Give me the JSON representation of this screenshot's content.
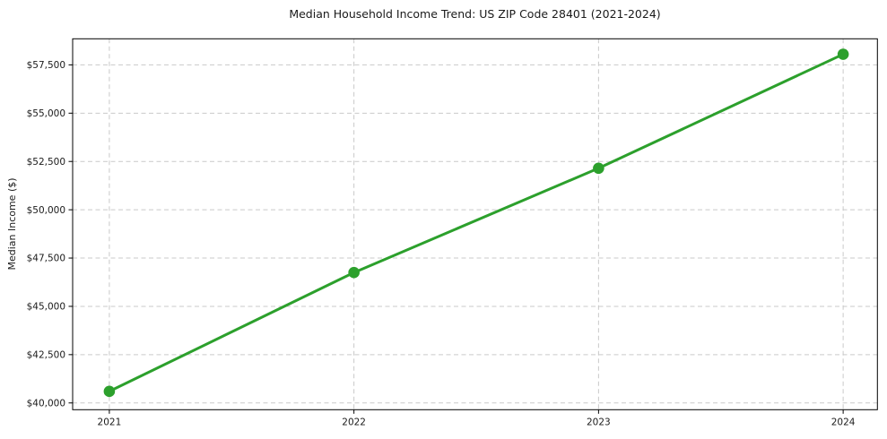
{
  "chart_data": {
    "type": "line",
    "title": "Median Household Income Trend: US ZIP Code 28401 (2021-2024)",
    "ylabel": "Median Income ($)",
    "xlabel": "",
    "x": [
      2021,
      2022,
      2023,
      2024
    ],
    "x_tick_labels": [
      "2021",
      "2022",
      "2023",
      "2024"
    ],
    "series": [
      {
        "name": "median_household_income",
        "values": [
          40600,
          46750,
          52150,
          58050
        ]
      }
    ],
    "y_ticks": [
      {
        "value": 40000,
        "label": "$40,000"
      },
      {
        "value": 42500,
        "label": "$42,500"
      },
      {
        "value": 45000,
        "label": "$45,000"
      },
      {
        "value": 47500,
        "label": "$47,500"
      },
      {
        "value": 50000,
        "label": "$50,000"
      },
      {
        "value": 52500,
        "label": "$52,500"
      },
      {
        "value": 55000,
        "label": "$55,000"
      },
      {
        "value": 57500,
        "label": "$57,500"
      }
    ],
    "ylim": [
      39650,
      58850
    ],
    "xlim": [
      2020.85,
      2024.14
    ],
    "grid": "both",
    "grid_style": "dashed",
    "legend": "none",
    "marker": "circle",
    "colors": {
      "line": "#2ca02c",
      "marker": "#2ca02c",
      "grid": "#c9c9c9",
      "axis": "#000000",
      "text": "#1a1a1a",
      "background": "#ffffff"
    }
  }
}
